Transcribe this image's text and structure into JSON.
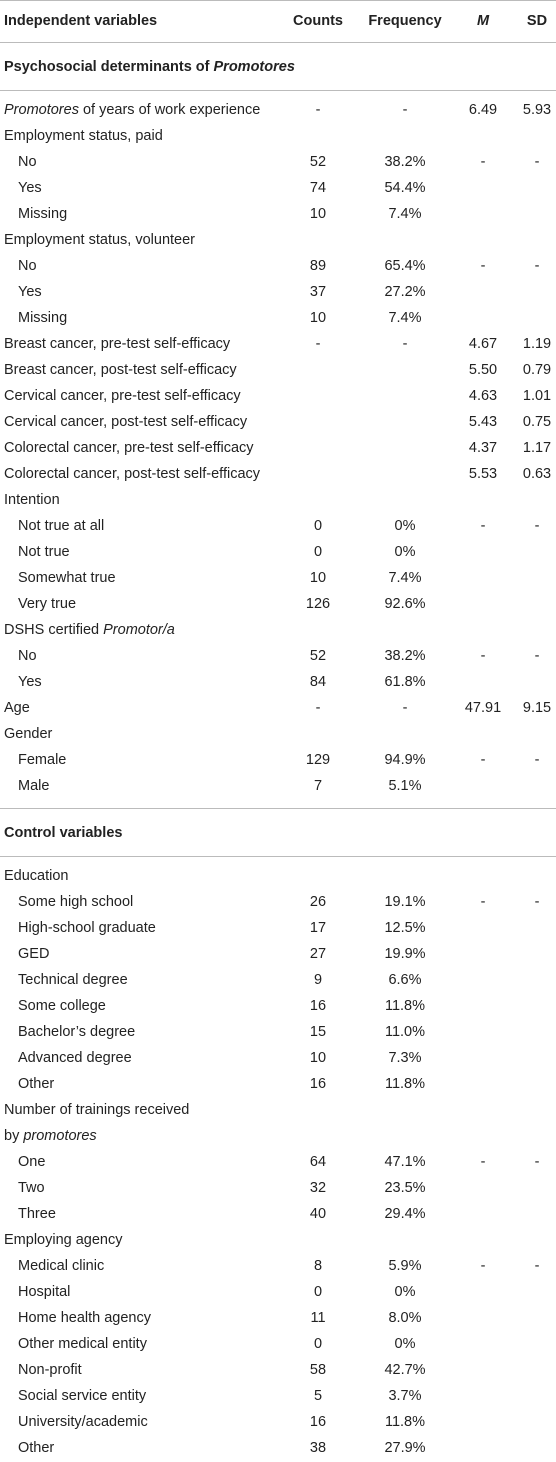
{
  "table": {
    "header": [
      "Independent variables",
      "Counts",
      "Frequency",
      "M",
      "SD"
    ],
    "sections": [
      {
        "title": [
          {
            "text": "Psychosocial determinants of "
          },
          {
            "text": "Promotores",
            "italic": true
          }
        ],
        "rows": [
          {
            "label": [
              {
                "text": "Promotores",
                "italic": true
              },
              {
                "text": " of years of work experience"
              }
            ],
            "cells": [
              "-",
              "-",
              "6.49",
              "5.93"
            ]
          },
          {
            "label": "Employment status, paid",
            "cells": [
              null,
              null,
              null,
              null
            ]
          },
          {
            "label": "No",
            "indent": true,
            "cells": [
              "52",
              "38.2%",
              "-",
              "-"
            ]
          },
          {
            "label": "Yes",
            "indent": true,
            "cells": [
              "74",
              "54.4%",
              null,
              null
            ]
          },
          {
            "label": "Missing",
            "indent": true,
            "cells": [
              "10",
              "7.4%",
              null,
              null
            ]
          },
          {
            "label": "Employment status, volunteer",
            "cells": [
              null,
              null,
              null,
              null
            ]
          },
          {
            "label": "No",
            "indent": true,
            "cells": [
              "89",
              "65.4%",
              "-",
              "-"
            ]
          },
          {
            "label": "Yes",
            "indent": true,
            "cells": [
              "37",
              "27.2%",
              null,
              null
            ]
          },
          {
            "label": "Missing",
            "indent": true,
            "cells": [
              "10",
              "7.4%",
              null,
              null
            ]
          },
          {
            "label": "Breast cancer, pre-test self-efficacy",
            "cells": [
              "-",
              "-",
              "4.67",
              "1.19"
            ]
          },
          {
            "label": "Breast cancer, post-test self-efficacy",
            "cells": [
              null,
              null,
              "5.50",
              "0.79"
            ]
          },
          {
            "label": "Cervical cancer, pre-test self-efficacy",
            "cells": [
              null,
              null,
              "4.63",
              "1.01"
            ]
          },
          {
            "label": "Cervical cancer, post-test self-efficacy",
            "cells": [
              null,
              null,
              "5.43",
              "0.75"
            ]
          },
          {
            "label": "Colorectal cancer, pre-test self-efficacy",
            "cells": [
              null,
              null,
              "4.37",
              "1.17"
            ]
          },
          {
            "label": "Colorectal cancer, post-test self-efficacy",
            "cells": [
              null,
              null,
              "5.53",
              "0.63"
            ]
          },
          {
            "label": "Intention",
            "cells": [
              null,
              null,
              null,
              null
            ]
          },
          {
            "label": "Not true at all",
            "indent": true,
            "cells": [
              "0",
              "0%",
              "-",
              "-"
            ]
          },
          {
            "label": "Not true",
            "indent": true,
            "cells": [
              "0",
              "0%",
              null,
              null
            ]
          },
          {
            "label": "Somewhat true",
            "indent": true,
            "cells": [
              "10",
              "7.4%",
              null,
              null
            ]
          },
          {
            "label": "Very true",
            "indent": true,
            "cells": [
              "126",
              "92.6%",
              null,
              null
            ]
          },
          {
            "label": [
              {
                "text": "DSHS certified "
              },
              {
                "text": "Promotor/a",
                "italic": true
              }
            ],
            "cells": [
              null,
              null,
              null,
              null
            ]
          },
          {
            "label": "No",
            "indent": true,
            "cells": [
              "52",
              "38.2%",
              "-",
              "-"
            ]
          },
          {
            "label": "Yes",
            "indent": true,
            "cells": [
              "84",
              "61.8%",
              null,
              null
            ]
          },
          {
            "label": "Age",
            "cells": [
              "-",
              "-",
              "47.91",
              "9.15"
            ]
          },
          {
            "label": "Gender",
            "cells": [
              null,
              null,
              null,
              null
            ]
          },
          {
            "label": "Female",
            "indent": true,
            "cells": [
              "129",
              "94.9%",
              "-",
              "-"
            ]
          },
          {
            "label": "Male",
            "indent": true,
            "cells": [
              "7",
              "5.1%",
              null,
              null
            ]
          }
        ]
      },
      {
        "title": "Control variables",
        "rows": [
          {
            "label": "Education",
            "cells": [
              null,
              null,
              null,
              null
            ]
          },
          {
            "label": "Some high school",
            "indent": true,
            "cells": [
              "26",
              "19.1%",
              "-",
              "-"
            ]
          },
          {
            "label": "High-school graduate",
            "indent": true,
            "cells": [
              "17",
              "12.5%",
              null,
              null
            ]
          },
          {
            "label": "GED",
            "indent": true,
            "cells": [
              "27",
              "19.9%",
              null,
              null
            ]
          },
          {
            "label": "Technical degree",
            "indent": true,
            "cells": [
              "9",
              "6.6%",
              null,
              null
            ]
          },
          {
            "label": "Some college",
            "indent": true,
            "cells": [
              "16",
              "11.8%",
              null,
              null
            ]
          },
          {
            "label": "Bachelor’s degree",
            "indent": true,
            "cells": [
              "15",
              "11.0%",
              null,
              null
            ]
          },
          {
            "label": "Advanced degree",
            "indent": true,
            "cells": [
              "10",
              "7.3%",
              null,
              null
            ]
          },
          {
            "label": "Other",
            "indent": true,
            "cells": [
              "16",
              "11.8%",
              null,
              null
            ]
          },
          {
            "label": "Number of trainings received",
            "cells": [
              null,
              null,
              null,
              null
            ]
          },
          {
            "label": [
              {
                "text": "by "
              },
              {
                "text": "promotores",
                "italic": true
              }
            ],
            "cells": [
              null,
              null,
              null,
              null
            ]
          },
          {
            "label": "One",
            "indent": true,
            "cells": [
              "64",
              "47.1%",
              "-",
              "-"
            ]
          },
          {
            "label": "Two",
            "indent": true,
            "cells": [
              "32",
              "23.5%",
              null,
              null
            ]
          },
          {
            "label": "Three",
            "indent": true,
            "cells": [
              "40",
              "29.4%",
              null,
              null
            ]
          },
          {
            "label": "Employing agency",
            "cells": [
              null,
              null,
              null,
              null
            ]
          },
          {
            "label": "Medical clinic",
            "indent": true,
            "cells": [
              "8",
              "5.9%",
              "-",
              "-"
            ]
          },
          {
            "label": "Hospital",
            "indent": true,
            "cells": [
              "0",
              "0%",
              null,
              null
            ]
          },
          {
            "label": "Home health agency",
            "indent": true,
            "cells": [
              "11",
              "8.0%",
              null,
              null
            ]
          },
          {
            "label": "Other medical entity",
            "indent": true,
            "cells": [
              "0",
              "0%",
              null,
              null
            ]
          },
          {
            "label": "Non-profit",
            "indent": true,
            "cells": [
              "58",
              "42.7%",
              null,
              null
            ]
          },
          {
            "label": "Social service entity",
            "indent": true,
            "cells": [
              "5",
              "3.7%",
              null,
              null
            ]
          },
          {
            "label": "University/academic",
            "indent": true,
            "cells": [
              "16",
              "11.8%",
              null,
              null
            ]
          },
          {
            "label": "Other",
            "indent": true,
            "cells": [
              "38",
              "27.9%",
              null,
              null
            ]
          }
        ]
      }
    ]
  }
}
